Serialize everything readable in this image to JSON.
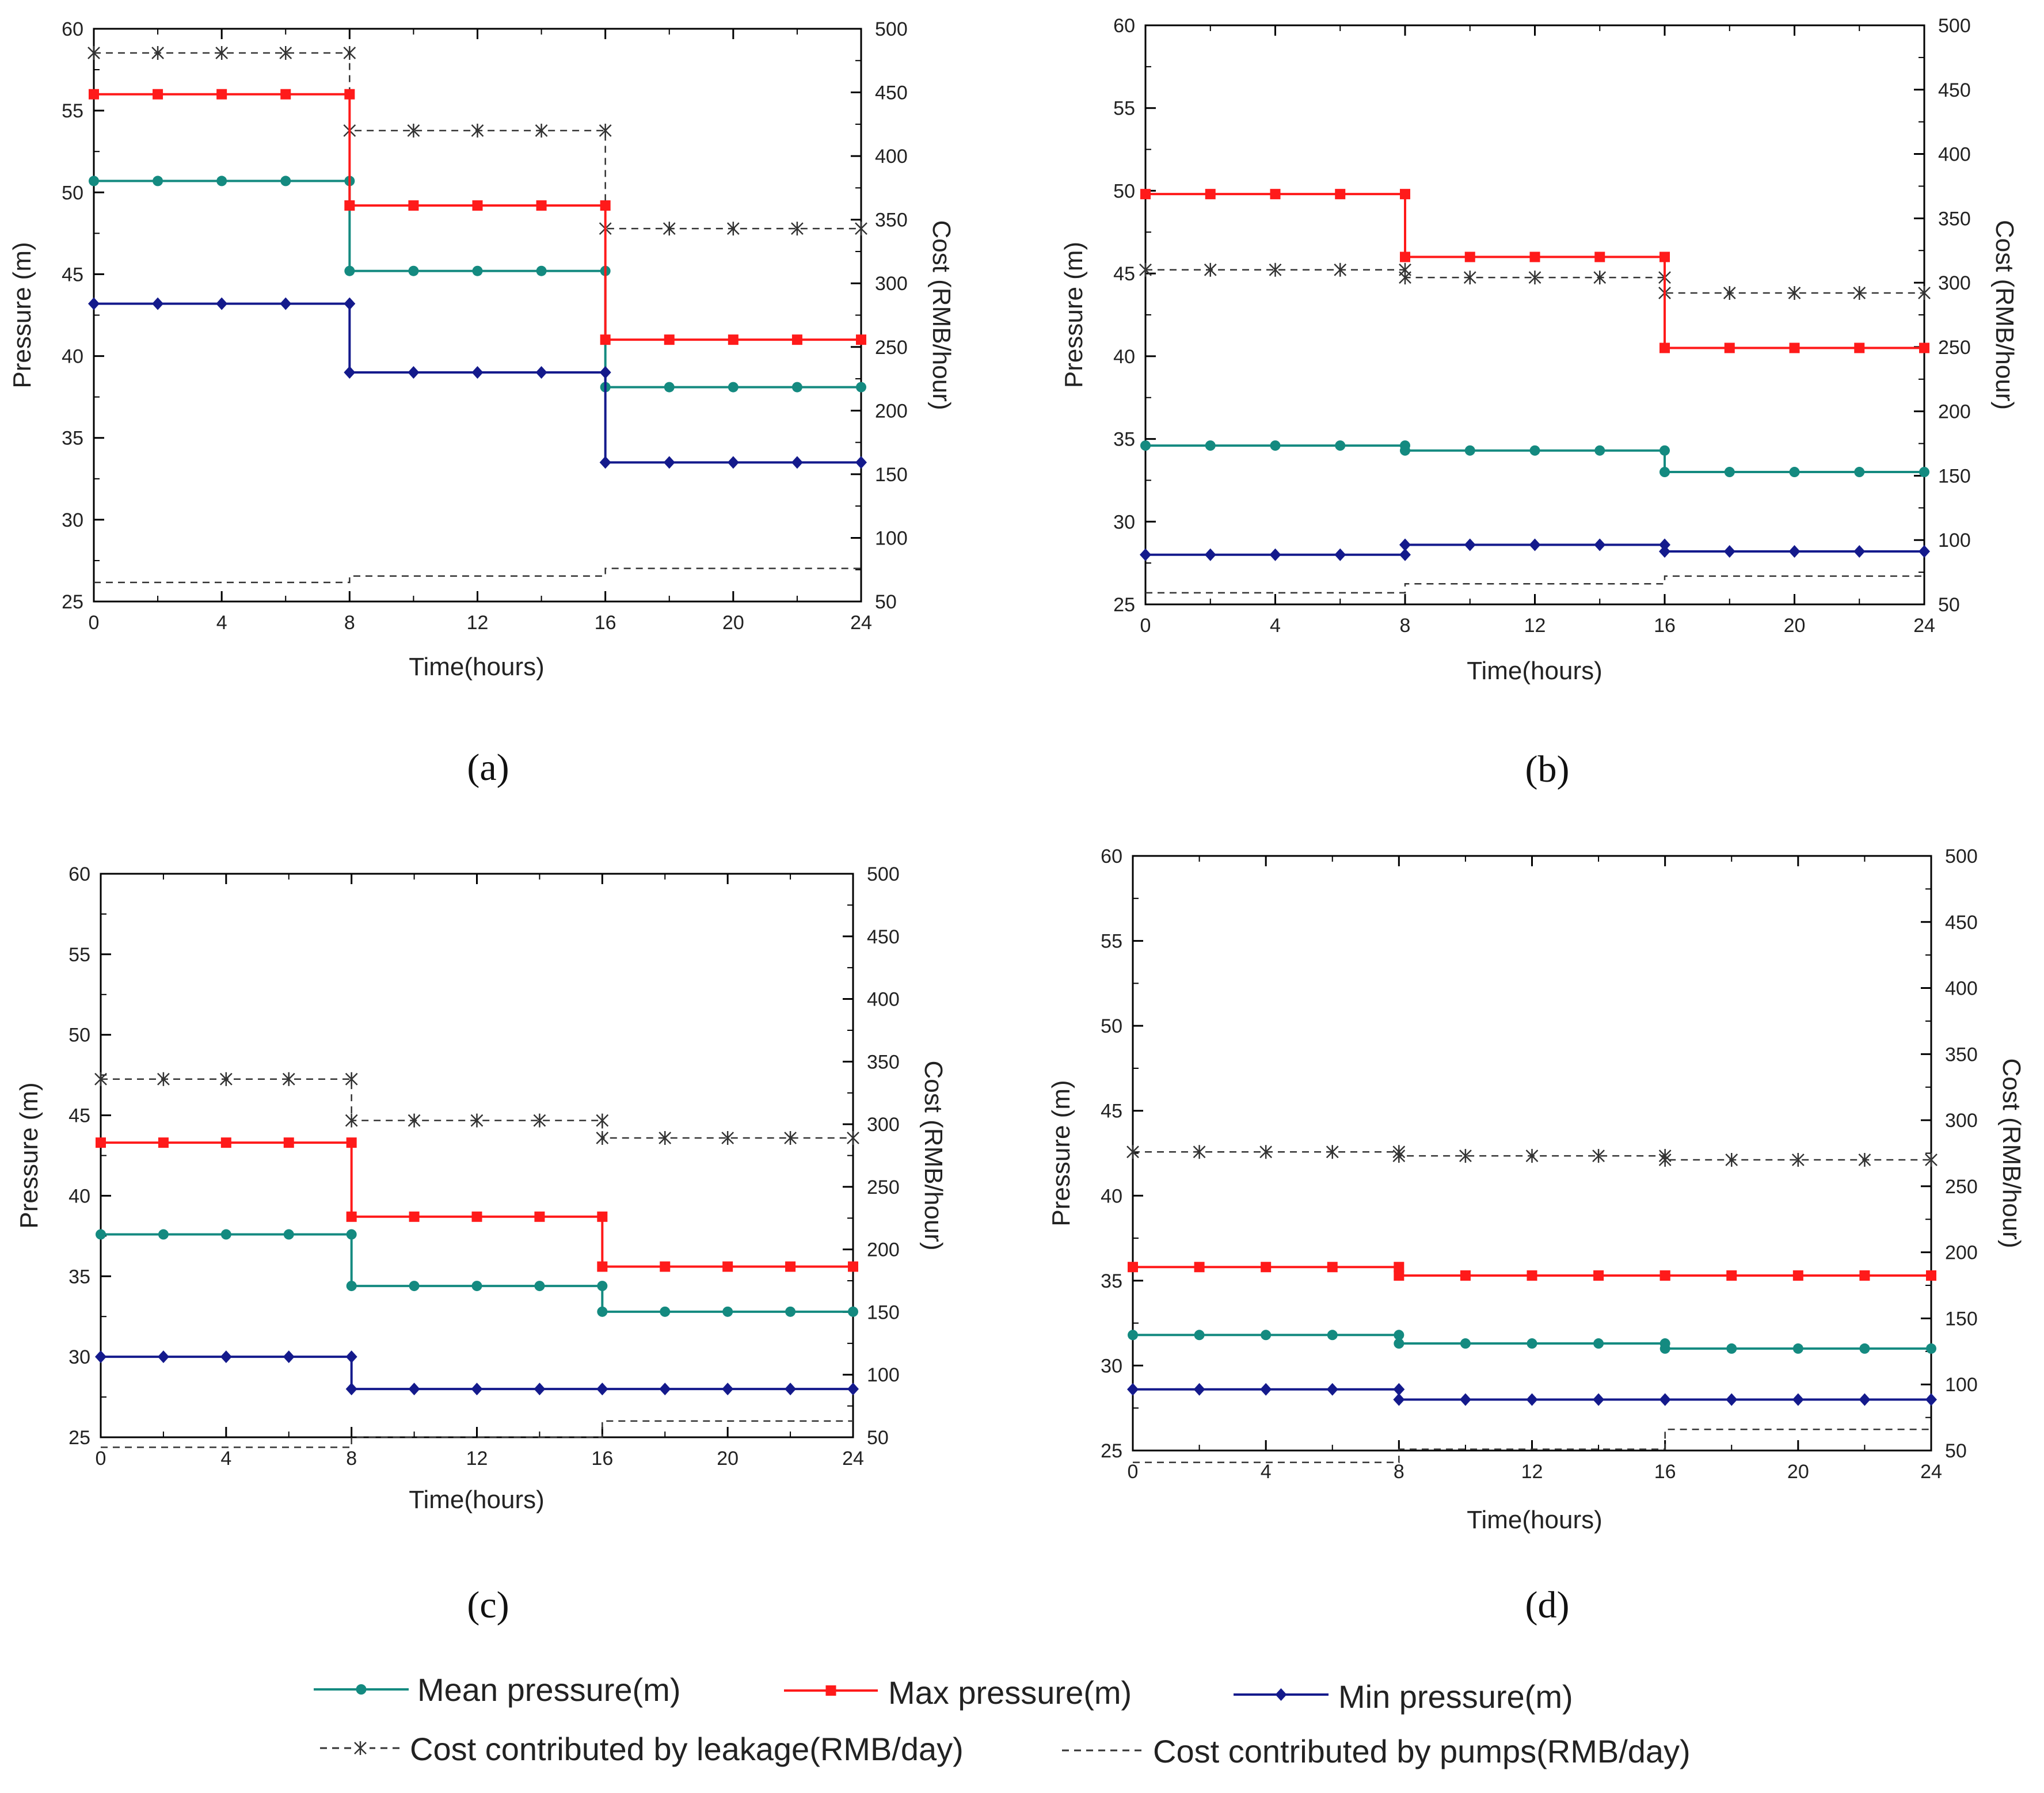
{
  "colors": {
    "mean": "#148a80",
    "max": "#ff1a1a",
    "min": "#141a8c",
    "leakage": "#333333",
    "pumps": "#333333",
    "axis": "#000000"
  },
  "legend": {
    "mean": "Mean pressure(m)",
    "max": "Max pressure(m)",
    "min": "Min pressure(m)",
    "leakage": "Cost contributed by leakage(RMB/day)",
    "pumps": "Cost contributed by pumps(RMB/day)"
  },
  "chart_data": [
    {
      "id": "a",
      "label": "(a)",
      "type": "line",
      "xlabel": "Time(hours)",
      "ylabel": "Pressure (m)",
      "y2label": "Cost (RMB/hour)",
      "xlim": [
        0,
        24
      ],
      "ylim": [
        25,
        60
      ],
      "y2lim": [
        50,
        500
      ],
      "xticks": [
        "0",
        "4",
        "8",
        "12",
        "16",
        "20",
        "24"
      ],
      "yticks": [
        "25",
        "30",
        "35",
        "40",
        "45",
        "50",
        "55",
        "60"
      ],
      "y2ticks": [
        "50",
        "100",
        "150",
        "200",
        "250",
        "300",
        "350",
        "400",
        "450",
        "500"
      ],
      "markers_x": [
        0,
        2,
        4,
        6,
        8,
        10,
        12,
        14,
        16,
        18,
        20,
        22,
        24
      ],
      "series": [
        {
          "key": "mean",
          "name": "Mean pressure(m)",
          "axis": "left",
          "levels": [
            50.7,
            45.2,
            38.1
          ]
        },
        {
          "key": "max",
          "name": "Max pressure(m)",
          "axis": "left",
          "levels": [
            56.0,
            49.2,
            41.0
          ]
        },
        {
          "key": "min",
          "name": "Min pressure(m)",
          "axis": "left",
          "levels": [
            43.2,
            39.0,
            33.5
          ]
        },
        {
          "key": "leakage",
          "name": "Cost contributed by leakage(RMB/day)",
          "axis": "right",
          "levels": [
            481,
            420,
            343
          ]
        },
        {
          "key": "pumps",
          "name": "Cost contributed by pumps(RMB/day)",
          "axis": "right",
          "levels": [
            65,
            70,
            76
          ]
        }
      ]
    },
    {
      "id": "b",
      "label": "(b)",
      "type": "line",
      "xlabel": "Time(hours)",
      "ylabel": "Pressure (m)",
      "y2label": "Cost (RMB/hour)",
      "xlim": [
        0,
        24
      ],
      "ylim": [
        25,
        60
      ],
      "y2lim": [
        50,
        500
      ],
      "xticks": [
        "0",
        "4",
        "8",
        "12",
        "16",
        "20",
        "24"
      ],
      "yticks": [
        "25",
        "30",
        "35",
        "40",
        "45",
        "50",
        "55",
        "60"
      ],
      "y2ticks": [
        "50",
        "100",
        "150",
        "200",
        "250",
        "300",
        "350",
        "400",
        "450",
        "500"
      ],
      "markers_x": [
        0,
        2,
        4,
        6,
        8,
        10,
        12,
        14,
        16,
        18,
        20,
        22,
        24
      ],
      "series": [
        {
          "key": "mean",
          "name": "Mean pressure(m)",
          "axis": "left",
          "levels": [
            34.6,
            34.3,
            33.0
          ]
        },
        {
          "key": "max",
          "name": "Max pressure(m)",
          "axis": "left",
          "levels": [
            49.8,
            46.0,
            40.5
          ]
        },
        {
          "key": "min",
          "name": "Min pressure(m)",
          "axis": "left",
          "levels": [
            28.0,
            28.6,
            28.2
          ]
        },
        {
          "key": "leakage",
          "name": "Cost contributed by leakage(RMB/day)",
          "axis": "right",
          "levels": [
            310,
            304,
            292
          ]
        },
        {
          "key": "pumps",
          "name": "Cost contributed by pumps(RMB/day)",
          "axis": "right",
          "levels": [
            59,
            66,
            72
          ]
        }
      ]
    },
    {
      "id": "c",
      "label": "(c)",
      "type": "line",
      "xlabel": "Time(hours)",
      "ylabel": "Pressure (m)",
      "y2label": "Cost (RMB/hour)",
      "xlim": [
        0,
        24
      ],
      "ylim": [
        25,
        60
      ],
      "y2lim": [
        50,
        500
      ],
      "xticks": [
        "0",
        "4",
        "8",
        "12",
        "16",
        "20",
        "24"
      ],
      "yticks": [
        "25",
        "30",
        "35",
        "40",
        "45",
        "50",
        "55",
        "60"
      ],
      "y2ticks": [
        "50",
        "100",
        "150",
        "200",
        "250",
        "300",
        "350",
        "400",
        "450",
        "500"
      ],
      "markers_x": [
        0,
        2,
        4,
        6,
        8,
        10,
        12,
        14,
        16,
        18,
        20,
        22,
        24
      ],
      "series": [
        {
          "key": "mean",
          "name": "Mean pressure(m)",
          "axis": "left",
          "levels": [
            37.6,
            34.4,
            32.8
          ]
        },
        {
          "key": "max",
          "name": "Max pressure(m)",
          "axis": "left",
          "levels": [
            43.3,
            38.7,
            35.6
          ]
        },
        {
          "key": "min",
          "name": "Min pressure(m)",
          "axis": "left",
          "levels": [
            30.0,
            28.0,
            28.0
          ]
        },
        {
          "key": "leakage",
          "name": "Cost contributed by leakage(RMB/day)",
          "axis": "right",
          "levels": [
            336,
            303,
            289
          ]
        },
        {
          "key": "pumps",
          "name": "Cost contributed by pumps(RMB/day)",
          "axis": "right",
          "levels": [
            42,
            50,
            63
          ]
        }
      ]
    },
    {
      "id": "d",
      "label": "(d)",
      "type": "line",
      "xlabel": "Time(hours)",
      "ylabel": "Pressure (m)",
      "y2label": "Cost (RMB/hour)",
      "xlim": [
        0,
        24
      ],
      "ylim": [
        25,
        60
      ],
      "y2lim": [
        50,
        500
      ],
      "xticks": [
        "0",
        "4",
        "8",
        "12",
        "16",
        "20",
        "24"
      ],
      "yticks": [
        "25",
        "30",
        "35",
        "40",
        "45",
        "50",
        "55",
        "60"
      ],
      "y2ticks": [
        "50",
        "100",
        "150",
        "200",
        "250",
        "300",
        "350",
        "400",
        "450",
        "500"
      ],
      "markers_x": [
        0,
        2,
        4,
        6,
        8,
        10,
        12,
        14,
        16,
        18,
        20,
        22,
        24
      ],
      "series": [
        {
          "key": "mean",
          "name": "Mean pressure(m)",
          "axis": "left",
          "levels": [
            31.8,
            31.3,
            31.0
          ]
        },
        {
          "key": "max",
          "name": "Max pressure(m)",
          "axis": "left",
          "levels": [
            35.8,
            35.3,
            35.3
          ]
        },
        {
          "key": "min",
          "name": "Min pressure(m)",
          "axis": "left",
          "levels": [
            28.6,
            28.0,
            28.0
          ]
        },
        {
          "key": "leakage",
          "name": "Cost contributed by leakage(RMB/day)",
          "axis": "right",
          "levels": [
            276,
            273,
            270
          ]
        },
        {
          "key": "pumps",
          "name": "Cost contributed by pumps(RMB/day)",
          "axis": "right",
          "levels": [
            41,
            51,
            66
          ]
        }
      ]
    }
  ]
}
